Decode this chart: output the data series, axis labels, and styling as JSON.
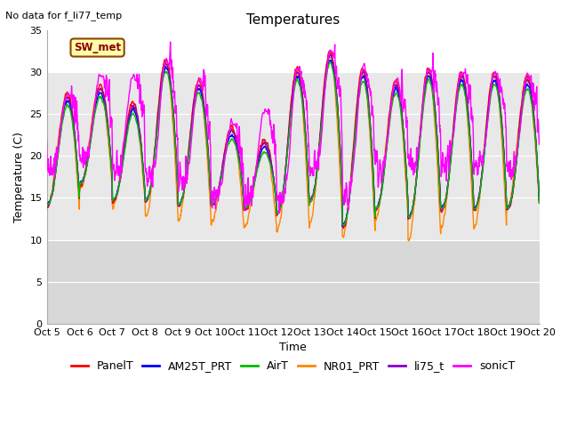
{
  "title": "Temperatures",
  "xlabel": "Time",
  "ylabel": "Temperature (C)",
  "no_data_text": "No data for f_li77_temp",
  "station_label": "SW_met",
  "ylim": [
    0,
    35
  ],
  "yticks": [
    0,
    5,
    10,
    15,
    20,
    25,
    30,
    35
  ],
  "x_labels": [
    "Oct 5",
    "Oct 6",
    "Oct 7",
    "Oct 8",
    "Oct 9",
    "Oct 10",
    "Oct 11",
    "Oct 12",
    "Oct 13",
    "Oct 14",
    "Oct 15",
    "Oct 16",
    "Oct 17",
    "Oct 18",
    "Oct 19",
    "Oct 20"
  ],
  "series": [
    {
      "name": "PanelT",
      "color": "#ff0000"
    },
    {
      "name": "AM25T_PRT",
      "color": "#0000ff"
    },
    {
      "name": "AirT",
      "color": "#00bb00"
    },
    {
      "name": "NR01_PRT",
      "color": "#ff8800"
    },
    {
      "name": "li75_t",
      "color": "#8800cc"
    },
    {
      "name": "sonicT",
      "color": "#ff00ff"
    }
  ],
  "bg_upper": "#ffffff",
  "bg_mid": "#e8e8e8",
  "bg_lower": "#d8d8d8",
  "grid_color": "#ffffff",
  "title_fontsize": 11,
  "axis_fontsize": 9,
  "tick_fontsize": 8,
  "legend_fontsize": 9,
  "day_peaks": [
    27.5,
    28.5,
    26.5,
    31.5,
    29.0,
    23.5,
    22.0,
    30.5,
    32.5,
    30.5,
    29.0,
    30.5,
    30.0,
    30.0,
    29.5
  ],
  "day_troughs": [
    14.0,
    16.5,
    14.5,
    14.5,
    14.0,
    14.0,
    13.5,
    13.0,
    14.5,
    11.5,
    13.5,
    12.5,
    13.5,
    13.5,
    13.5
  ],
  "sonic_extra_peaks": [
    27.5,
    29.5,
    29.5,
    31.5,
    29.0,
    24.0,
    25.5,
    30.5,
    32.5,
    30.5,
    29.0,
    30.5,
    30.0,
    30.0,
    29.5
  ],
  "sonic_troughs": [
    18.5,
    20.0,
    19.0,
    17.0,
    16.5,
    15.0,
    15.0,
    14.5,
    18.0,
    15.0,
    18.5,
    19.0,
    19.0,
    18.5,
    18.5
  ],
  "nr01_troughs": [
    13.5,
    16.0,
    14.0,
    12.5,
    12.5,
    12.0,
    11.5,
    11.0,
    12.0,
    10.5,
    12.5,
    10.0,
    11.5,
    11.5,
    13.5
  ]
}
